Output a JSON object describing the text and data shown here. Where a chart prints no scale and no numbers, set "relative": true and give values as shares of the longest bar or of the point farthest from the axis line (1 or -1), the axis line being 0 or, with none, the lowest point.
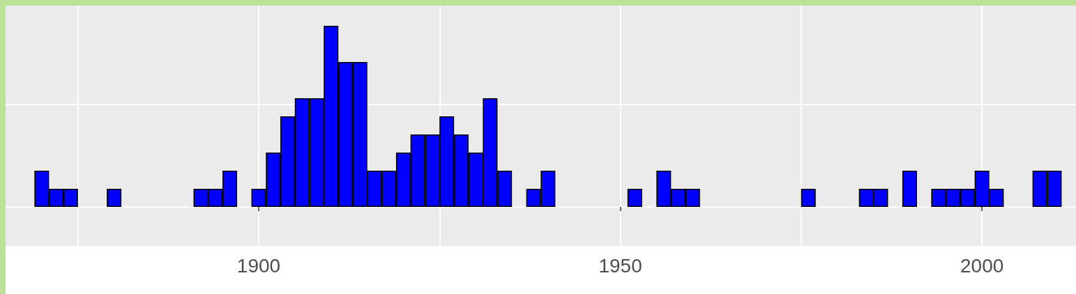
{
  "chart_data": {
    "type": "bar",
    "x": [
      1870,
      1872,
      1874,
      1880,
      1892,
      1894,
      1896,
      1900,
      1902,
      1904,
      1906,
      1908,
      1910,
      1912,
      1914,
      1916,
      1918,
      1920,
      1922,
      1924,
      1926,
      1928,
      1930,
      1932,
      1934,
      1938,
      1940,
      1952,
      1956,
      1958,
      1960,
      1976,
      1984,
      1986,
      1990,
      1994,
      1996,
      1998,
      2000,
      2002,
      2008,
      2010
    ],
    "series": [
      {
        "color": "#0000ff",
        "values": [
          0.2,
          0.1,
          0.1,
          0.1,
          0.1,
          0.1,
          0.2,
          0.1,
          0.3,
          0.5,
          0.6,
          0.6,
          1,
          0.8,
          0.8,
          0.2,
          0.2,
          0.3,
          0.4,
          0.4,
          0.5,
          0.4,
          0.3,
          0.6,
          0.2,
          0.1,
          0.2,
          0.1,
          0.2,
          0.1,
          0.1,
          0.1,
          0.1,
          0.1,
          0.2,
          0.1,
          0.1,
          0.1,
          0.2,
          0.1,
          0.2,
          0.2
        ]
      }
    ],
    "relative": true,
    "xlim": [
      1865,
      2013
    ],
    "xticks": [
      {
        "value": 1875,
        "label": null
      },
      1900,
      {
        "value": 1925,
        "label": null
      },
      1950,
      {
        "value": 1975,
        "label": null
      },
      2000
    ],
    "tick_labels": "x",
    "grid": true
  }
}
